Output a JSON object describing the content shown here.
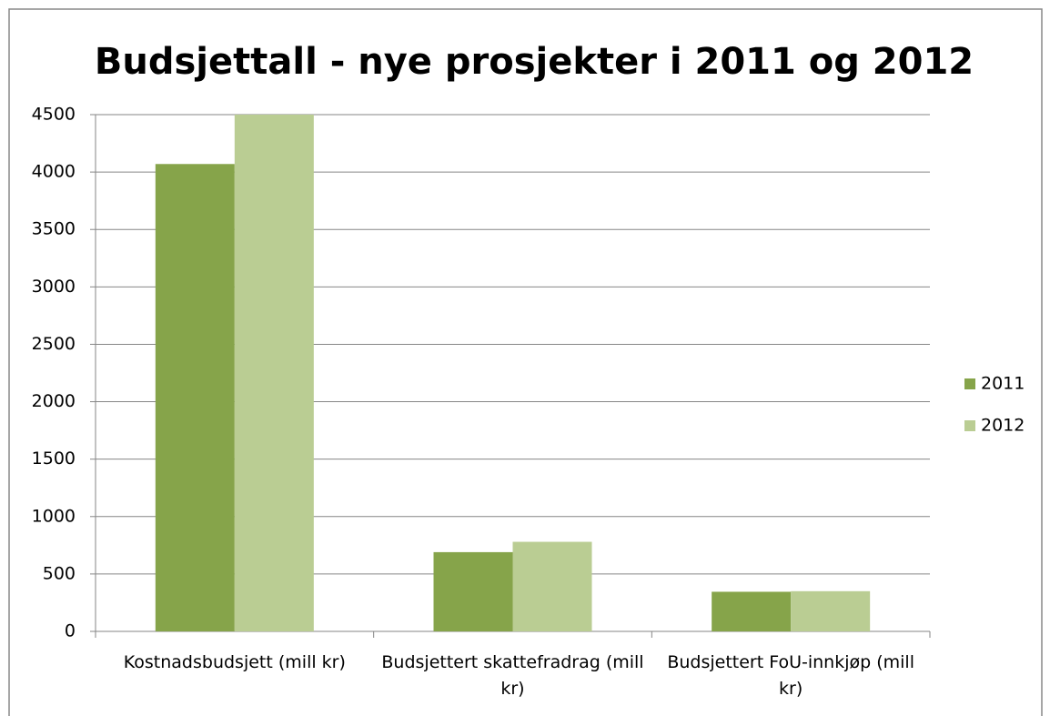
{
  "chart_data": {
    "type": "bar",
    "title": "Budsjettall - nye prosjekter i 2011 og 2012",
    "categories": [
      "Kostnadsbudsjett (mill kr)",
      "Budsjettert skattefradrag (mill kr)",
      "Budsjettert FoU-innkjøp (mill kr)"
    ],
    "series": [
      {
        "name": "2011",
        "color": "#86a44a",
        "values": [
          4070,
          690,
          345
        ]
      },
      {
        "name": "2012",
        "color": "#bacd93",
        "values": [
          4500,
          780,
          350
        ]
      }
    ],
    "ylim": [
      0,
      4500
    ],
    "yticks": [
      0,
      500,
      1000,
      1500,
      2000,
      2500,
      3000,
      3500,
      4000,
      4500
    ],
    "grid": true,
    "legend": "right"
  }
}
